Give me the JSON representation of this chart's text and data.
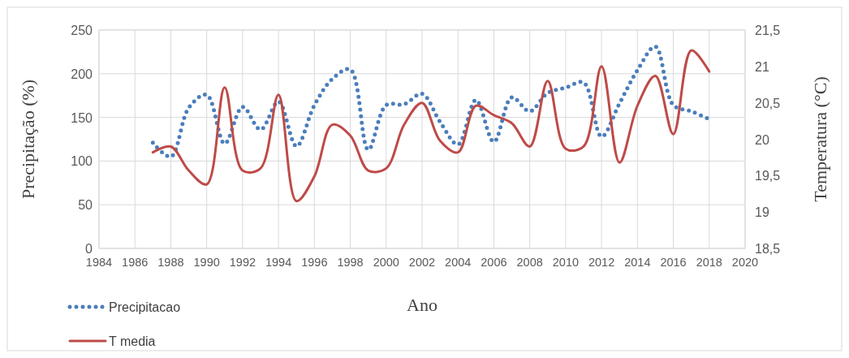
{
  "chart_data": {
    "type": "line",
    "xlabel": "Ano",
    "ylabel": "Precipitação (%)",
    "y2label": "Temperatura (°C)",
    "x": [
      1987,
      1988,
      1989,
      1990,
      1991,
      1992,
      1993,
      1994,
      1995,
      1996,
      1997,
      1998,
      1999,
      2000,
      2001,
      2002,
      2003,
      2004,
      2005,
      2006,
      2007,
      2008,
      2009,
      2010,
      2011,
      2012,
      2013,
      2014,
      2015,
      2016,
      2017,
      2018
    ],
    "xlim": [
      1984,
      2020
    ],
    "xticks": [
      1984,
      1986,
      1988,
      1990,
      1992,
      1994,
      1996,
      1998,
      2000,
      2002,
      2004,
      2006,
      2008,
      2010,
      2012,
      2014,
      2016,
      2018,
      2020
    ],
    "ylim": [
      0,
      250
    ],
    "yticks": [
      0,
      50,
      100,
      150,
      200,
      250
    ],
    "y2lim": [
      18.5,
      21.5
    ],
    "y2ticks": [
      {
        "value": 18.5,
        "label": "18,5"
      },
      {
        "value": 19,
        "label": "19"
      },
      {
        "value": 19.5,
        "label": "19,5"
      },
      {
        "value": 20,
        "label": "20"
      },
      {
        "value": 20.5,
        "label": "20,5"
      },
      {
        "value": 21,
        "label": "21"
      },
      {
        "value": 21.5,
        "label": "21,5"
      }
    ],
    "grid": true,
    "legend": "bottom left",
    "series": [
      {
        "name": "Precipitacao",
        "color": "#4a7ebb",
        "line_style": "dotted",
        "values": [
          121,
          105,
          161,
          176,
          120,
          162,
          136,
          168,
          117,
          164,
          194,
          205,
          113,
          164,
          165,
          177,
          145,
          119,
          170,
          122,
          173,
          157,
          178,
          184,
          190,
          128,
          166,
          204,
          231,
          164,
          157,
          148
        ]
      },
      {
        "name": "T media",
        "color": "#be4b48",
        "axis": "y2",
        "line_style": "solid",
        "values": [
          19.82,
          19.9,
          19.57,
          19.38,
          20.71,
          19.57,
          19.6,
          20.61,
          19.15,
          19.49,
          20.2,
          20.05,
          19.57,
          19.6,
          20.2,
          20.5,
          19.98,
          19.82,
          20.46,
          20.33,
          20.22,
          19.9,
          20.8,
          19.87,
          19.9,
          21.0,
          19.68,
          20.46,
          20.87,
          20.07,
          21.22,
          20.93
        ]
      }
    ]
  }
}
